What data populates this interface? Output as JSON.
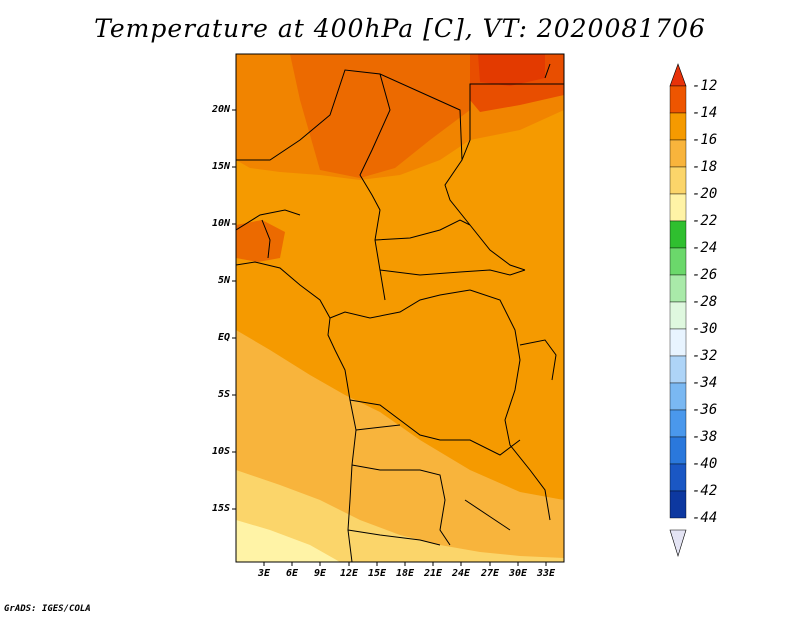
{
  "title": "Temperature at 400hPa [C], VT: 2020081706",
  "credit": "GrADS: IGES/COLA",
  "map": {
    "variable": "Temperature",
    "level_hpa": 400,
    "units": "C",
    "valid_time": "2020081706",
    "lon_range": [
      0,
      35
    ],
    "lat_range": [
      -20,
      25
    ],
    "lat_ticks": [
      "20N",
      "15N",
      "10N",
      "5N",
      "EQ",
      "5S",
      "10S",
      "15S"
    ],
    "lon_ticks": [
      "3E",
      "6E",
      "9E",
      "12E",
      "15E",
      "18E",
      "21E",
      "24E",
      "27E",
      "30E",
      "33E"
    ],
    "field_levels": {
      "northeast_max": "-12 to -14",
      "central": "-14 to -16",
      "south": "-16 to -20"
    }
  },
  "colorbar": {
    "levels": [
      "-12",
      "-14",
      "-16",
      "-18",
      "-20",
      "-22",
      "-24",
      "-26",
      "-28",
      "-30",
      "-32",
      "-34",
      "-36",
      "-38",
      "-40",
      "-42",
      "-44"
    ],
    "colors": [
      "#ee5500",
      "#f59a00",
      "#f8b43c",
      "#fbd56a",
      "#fff3a6",
      "#2fbf2f",
      "#6bd86b",
      "#a9eaa9",
      "#dff8df",
      "#e8f4ff",
      "#aed4f7",
      "#7ab8f2",
      "#4a98ec",
      "#2a78dc",
      "#1a57c4",
      "#0d38a0",
      "#061a6e"
    ],
    "top_arrow_color": "#e8320a",
    "bottom_arrow_color": "#e4e4f4"
  }
}
